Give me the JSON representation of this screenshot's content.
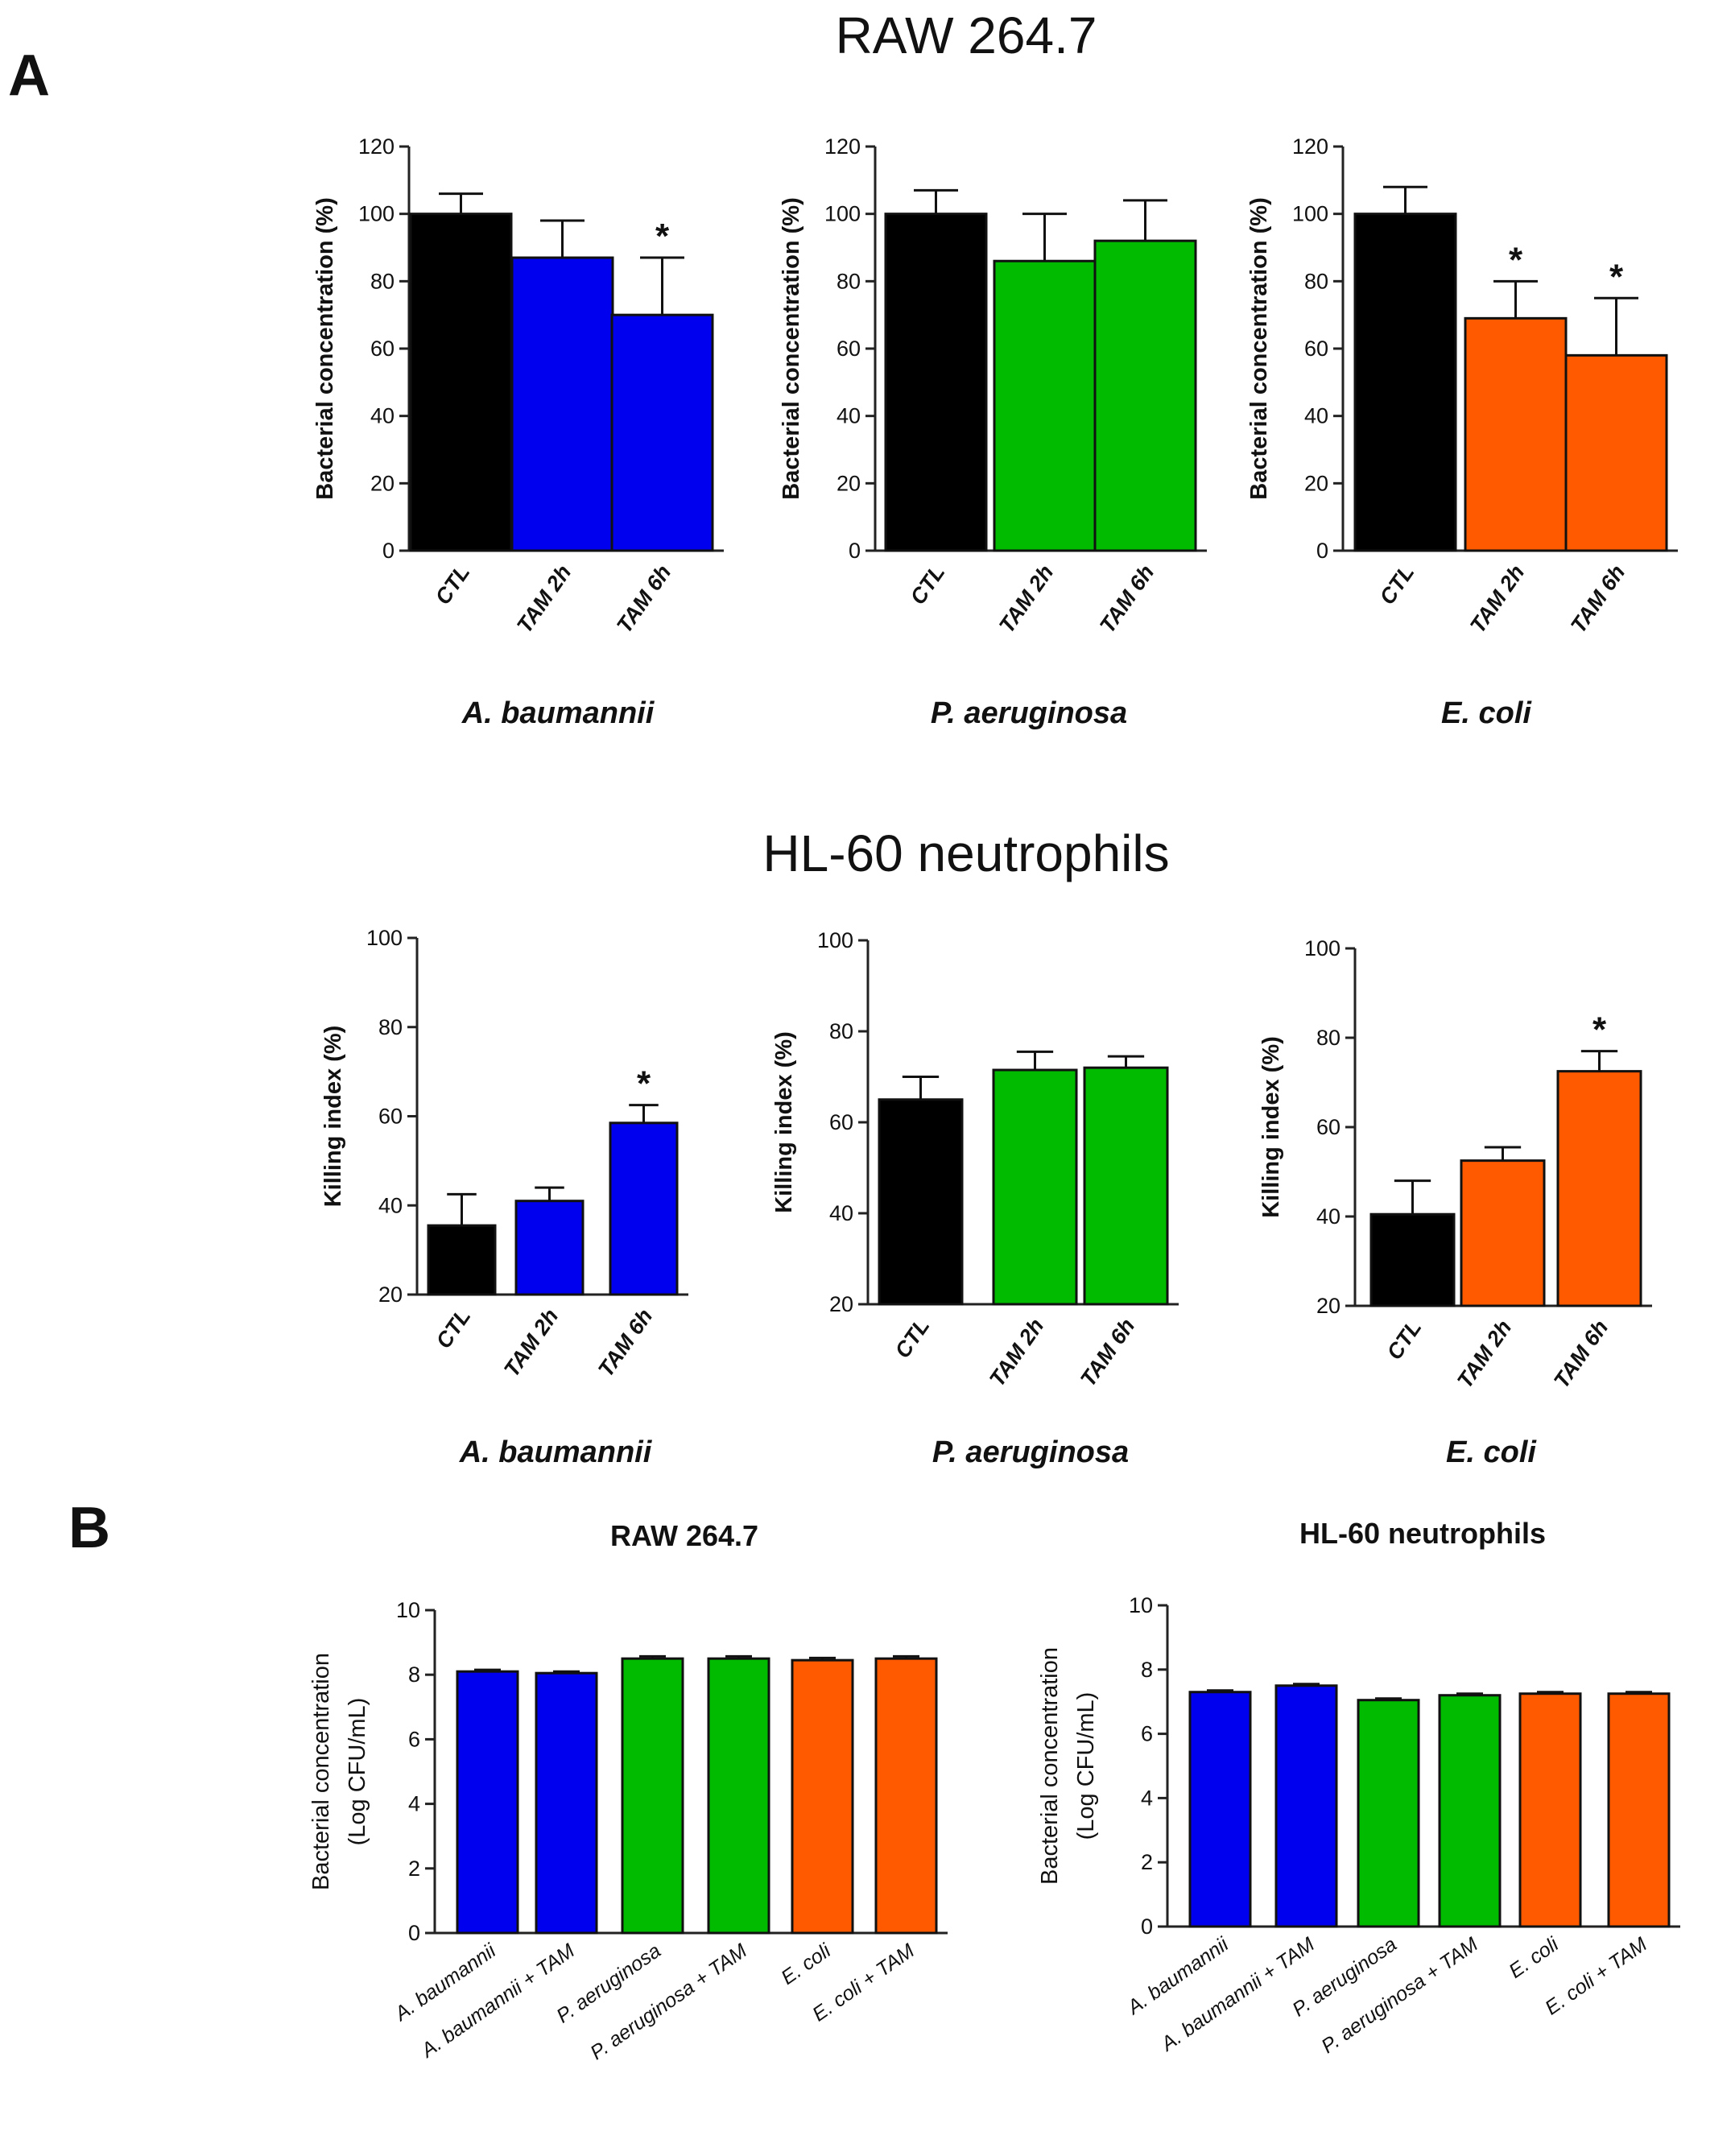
{
  "figure": {
    "panel_a_letter": "A",
    "panel_b_letter": "B",
    "raw_title": "RAW 264.7",
    "hl60_title": "HL-60 neutrophils"
  },
  "colors": {
    "ctl": "#000000",
    "a_baumannii": "#0000ee",
    "p_aeruginosa": "#00bb00",
    "e_coli": "#ff5a00"
  },
  "chart_data": [
    {
      "id": "raw-a-baumannii",
      "type": "bar",
      "panel": "A",
      "group": "RAW 264.7",
      "species": "A. baumannii",
      "ylabel": "Bacterial concentration (%)",
      "ylim": [
        0,
        120
      ],
      "yticks": [
        0,
        20,
        40,
        60,
        80,
        100,
        120
      ],
      "categories": [
        "CTL",
        "TAM 2h",
        "TAM 6h"
      ],
      "values": [
        100,
        87,
        70
      ],
      "errors": [
        6,
        11,
        17
      ],
      "significance": [
        "",
        "",
        "*"
      ],
      "bar_colors": [
        "#000000",
        "#0000ee",
        "#0000ee"
      ]
    },
    {
      "id": "raw-p-aeruginosa",
      "type": "bar",
      "panel": "A",
      "group": "RAW 264.7",
      "species": "P. aeruginosa",
      "ylabel": "Bacterial concentration (%)",
      "ylim": [
        0,
        120
      ],
      "yticks": [
        0,
        20,
        40,
        60,
        80,
        100,
        120
      ],
      "categories": [
        "CTL",
        "TAM 2h",
        "TAM 6h"
      ],
      "values": [
        100,
        86,
        92
      ],
      "errors": [
        7,
        14,
        12
      ],
      "significance": [
        "",
        "",
        ""
      ],
      "bar_colors": [
        "#000000",
        "#00bb00",
        "#00bb00"
      ]
    },
    {
      "id": "raw-e-coli",
      "type": "bar",
      "panel": "A",
      "group": "RAW 264.7",
      "species": "E. coli",
      "ylabel": "Bacterial concentration (%)",
      "ylim": [
        0,
        120
      ],
      "yticks": [
        0,
        20,
        40,
        60,
        80,
        100,
        120
      ],
      "categories": [
        "CTL",
        "TAM 2h",
        "TAM 6h"
      ],
      "values": [
        100,
        69,
        58
      ],
      "errors": [
        8,
        11,
        17
      ],
      "significance": [
        "",
        "*",
        "*"
      ],
      "bar_colors": [
        "#000000",
        "#ff5a00",
        "#ff5a00"
      ]
    },
    {
      "id": "hl60-a-baumannii",
      "type": "bar",
      "panel": "A",
      "group": "HL-60 neutrophils",
      "species": "A. baumannii",
      "ylabel": "Killing index (%)",
      "ylim": [
        20,
        100
      ],
      "yticks": [
        20,
        40,
        60,
        80,
        100
      ],
      "categories": [
        "CTL",
        "TAM 2h",
        "TAM 6h"
      ],
      "values": [
        35.5,
        41,
        58.5
      ],
      "errors": [
        7,
        3,
        4
      ],
      "significance": [
        "",
        "",
        "*"
      ],
      "bar_colors": [
        "#000000",
        "#0000ee",
        "#0000ee"
      ]
    },
    {
      "id": "hl60-p-aeruginosa",
      "type": "bar",
      "panel": "A",
      "group": "HL-60 neutrophils",
      "species": "P. aeruginosa",
      "ylabel": "Killing index (%)",
      "ylim": [
        20,
        100
      ],
      "yticks": [
        20,
        40,
        60,
        80,
        100
      ],
      "categories": [
        "CTL",
        "TAM 2h",
        "TAM 6h"
      ],
      "values": [
        65,
        71.5,
        72
      ],
      "errors": [
        5,
        4,
        2.5
      ],
      "significance": [
        "",
        "",
        ""
      ],
      "bar_colors": [
        "#000000",
        "#00bb00",
        "#00bb00"
      ]
    },
    {
      "id": "hl60-e-coli",
      "type": "bar",
      "panel": "A",
      "group": "HL-60 neutrophils",
      "species": "E. coli",
      "ylabel": "Killing index (%)",
      "ylim": [
        20,
        100
      ],
      "yticks": [
        20,
        40,
        60,
        80,
        100
      ],
      "categories": [
        "CTL",
        "TAM 2h",
        "TAM  6h"
      ],
      "values": [
        40.5,
        52.5,
        72.5
      ],
      "errors": [
        7.5,
        3,
        4.5
      ],
      "significance": [
        "",
        "",
        "*"
      ],
      "bar_colors": [
        "#000000",
        "#ff5a00",
        "#ff5a00"
      ]
    },
    {
      "id": "b-raw",
      "type": "bar",
      "panel": "B",
      "title": "RAW 264.7",
      "ylabel": [
        "Bacterial concentration",
        "(Log CFU/mL)"
      ],
      "ylim": [
        0,
        10
      ],
      "yticks": [
        0,
        2,
        4,
        6,
        8,
        10
      ],
      "categories": [
        "A. baumannii",
        "A. baumannii + TAM",
        "P. aeruginosa",
        "P. aeruginosa + TAM",
        "E. coli",
        "E. coli + TAM"
      ],
      "values": [
        8.1,
        8.05,
        8.5,
        8.5,
        8.45,
        8.5
      ],
      "errors": [
        0.05,
        0.05,
        0.07,
        0.07,
        0.07,
        0.07
      ],
      "bar_colors": [
        "#0000ee",
        "#0000ee",
        "#00bb00",
        "#00bb00",
        "#ff5a00",
        "#ff5a00"
      ]
    },
    {
      "id": "b-hl60",
      "type": "bar",
      "panel": "B",
      "title": "HL-60 neutrophils",
      "ylabel": [
        "Bacterial concentration",
        "(Log CFU/mL)"
      ],
      "ylim": [
        0,
        10
      ],
      "yticks": [
        0,
        2,
        4,
        6,
        8,
        10
      ],
      "categories": [
        "A. baumannii",
        "A. baumannii + TAM",
        "P. aeruginosa",
        "P. aeruginosa + TAM",
        "E. coli",
        "E. coli + TAM"
      ],
      "values": [
        7.3,
        7.5,
        7.05,
        7.2,
        7.25,
        7.25
      ],
      "errors": [
        0.05,
        0.05,
        0.05,
        0.05,
        0.05,
        0.05
      ],
      "bar_colors": [
        "#0000ee",
        "#0000ee",
        "#00bb00",
        "#00bb00",
        "#ff5a00",
        "#ff5a00"
      ]
    }
  ]
}
